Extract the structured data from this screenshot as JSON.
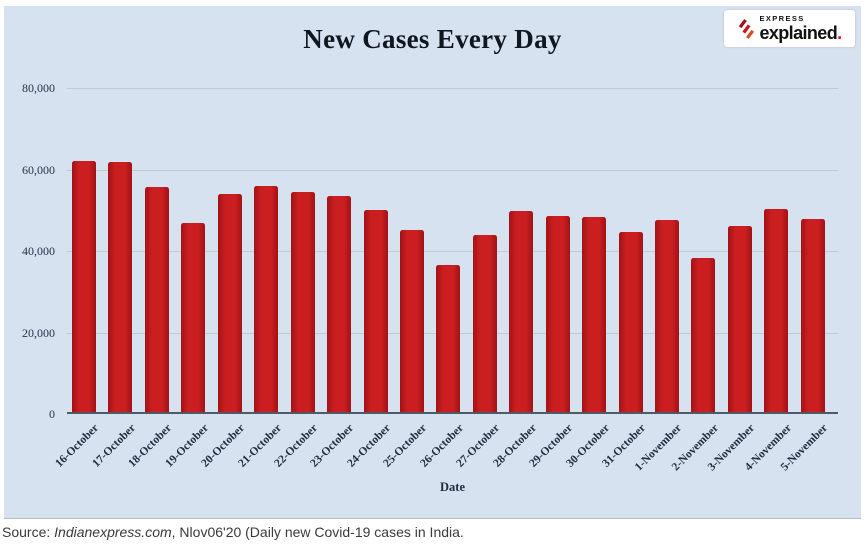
{
  "chart_data": {
    "type": "bar",
    "title": "New Cases Every Day",
    "xlabel": "Date",
    "ylabel": "",
    "ymin": 0,
    "ymax": 80000,
    "grid": true,
    "legend": false,
    "background_color": "#d7e2f0",
    "bar_color": "#cb1e20",
    "bar_edge_color": "#a11316",
    "yticks": [
      {
        "label": "80,000",
        "value": 80000
      },
      {
        "label": "60,000",
        "value": 60000
      },
      {
        "label": "40,000",
        "value": 40000
      },
      {
        "label": "20,000",
        "value": 20000
      },
      {
        "label": "0",
        "value": 0
      }
    ],
    "categories": [
      "16-October",
      "17-October",
      "18-October",
      "19-October",
      "20-October",
      "21-October",
      "22-October",
      "23-October",
      "24-October",
      "25-October",
      "26-October",
      "27-October",
      "28-October",
      "29-October",
      "30-October",
      "31-October",
      "1-November",
      "2-November",
      "3-November",
      "4-November",
      "5-November"
    ],
    "values": [
      62200,
      61900,
      55800,
      46900,
      54100,
      55900,
      54400,
      53400,
      50100,
      45200,
      36500,
      43900,
      49900,
      48600,
      48300,
      44700,
      47700,
      38400,
      46200,
      50200,
      47900
    ]
  },
  "logo": {
    "top": "EXPRESS",
    "main": "explained",
    "dot": ".",
    "accent_color": "#d6152c"
  },
  "caption": {
    "prefix": "Source: ",
    "source": "Indianexpress.com",
    "rest": ", Nlov06'20 (Daily new Covid-19 cases in India."
  }
}
